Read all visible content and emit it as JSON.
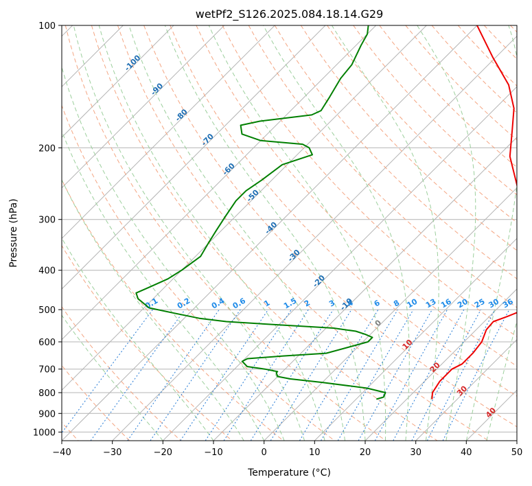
{
  "chart_data": {
    "type": "line",
    "title": "wetPf2_S126.2025.084.18.14.G29",
    "xlabel": "Temperature (°C)",
    "ylabel": "Pressure (hPa)",
    "xlim": [
      -40,
      50
    ],
    "ylim": [
      1050,
      100
    ],
    "y_scale": "log",
    "x_ticks": [
      -40,
      -30,
      -20,
      -10,
      0,
      10,
      20,
      30,
      40,
      50
    ],
    "x_tick_labels": [
      "−40",
      "−30",
      "−20",
      "−10",
      "0",
      "10",
      "20",
      "30",
      "40",
      "50"
    ],
    "y_ticks": [
      100,
      200,
      300,
      400,
      500,
      600,
      700,
      800,
      900,
      1000
    ],
    "y_tick_labels": [
      "100",
      "200",
      "300",
      "400",
      "500",
      "600",
      "700",
      "800",
      "900",
      "1000"
    ],
    "grid": true,
    "skew": true,
    "series": [
      {
        "name": "",
        "color": "#ee0000",
        "points": [
          [
            830,
            25.0
          ],
          [
            800,
            23.8
          ],
          [
            750,
            23.0
          ],
          [
            700,
            23.0
          ],
          [
            680,
            24.0
          ],
          [
            640,
            24.0
          ],
          [
            600,
            23.5
          ],
          [
            560,
            22.0
          ],
          [
            535,
            21.8
          ],
          [
            520,
            23.5
          ],
          [
            505,
            25.0
          ],
          [
            490,
            25.5
          ],
          [
            470,
            24.5
          ],
          [
            450,
            22.5
          ],
          [
            400,
            18.5
          ],
          [
            350,
            13.5
          ],
          [
            300,
            7.2
          ],
          [
            250,
            0.0
          ],
          [
            210,
            -7.6
          ],
          [
            180,
            -12.5
          ],
          [
            160,
            -16.3
          ],
          [
            140,
            -22.0
          ],
          [
            120,
            -30.5
          ],
          [
            100,
            -40.0
          ]
        ]
      },
      {
        "name": "",
        "color": "#007f00",
        "points": [
          [
            830,
            14.0
          ],
          [
            820,
            15.0
          ],
          [
            800,
            14.5
          ],
          [
            780,
            10.0
          ],
          [
            755,
            0.0
          ],
          [
            740,
            -7.0
          ],
          [
            730,
            -10.0
          ],
          [
            715,
            -11.0
          ],
          [
            710,
            -11.0
          ],
          [
            700,
            -14.0
          ],
          [
            690,
            -18.0
          ],
          [
            670,
            -20.0
          ],
          [
            660,
            -19.5
          ],
          [
            650,
            -13.0
          ],
          [
            640,
            -5.0
          ],
          [
            620,
            -2.0
          ],
          [
            600,
            1.0
          ],
          [
            585,
            1.0
          ],
          [
            575,
            -1.0
          ],
          [
            565,
            -3.5
          ],
          [
            555,
            -8.5
          ],
          [
            545,
            -20.0
          ],
          [
            535,
            -31.0
          ],
          [
            525,
            -37.0
          ],
          [
            510,
            -43.0
          ],
          [
            495,
            -49.0
          ],
          [
            470,
            -53.0
          ],
          [
            455,
            -54.5
          ],
          [
            440,
            -53.0
          ],
          [
            420,
            -51.0
          ],
          [
            400,
            -50.0
          ],
          [
            370,
            -49.0
          ],
          [
            345,
            -50.0
          ],
          [
            320,
            -51.0
          ],
          [
            295,
            -52.0
          ],
          [
            270,
            -53.0
          ],
          [
            255,
            -53.0
          ],
          [
            240,
            -52.0
          ],
          [
            220,
            -51.0
          ],
          [
            208,
            -47.0
          ],
          [
            200,
            -49.0
          ],
          [
            196,
            -51.0
          ],
          [
            192,
            -60.0
          ],
          [
            185,
            -65.0
          ],
          [
            176,
            -67.0
          ],
          [
            172,
            -64.0
          ],
          [
            166,
            -55.0
          ],
          [
            162,
            -54.0
          ],
          [
            150,
            -55.0
          ],
          [
            135,
            -56.5
          ],
          [
            125,
            -57.0
          ],
          [
            112,
            -59.0
          ],
          [
            105,
            -60.0
          ],
          [
            100,
            -61.5
          ]
        ]
      }
    ],
    "dry_adiabat_labels": [
      "-100",
      "-90",
      "-80",
      "-70",
      "-60",
      "-50",
      "-40",
      "-30",
      "-20",
      "-10",
      "0",
      "10",
      "20",
      "30",
      "40"
    ],
    "mixing_ratio_labels": [
      "0.1",
      "0.2",
      "0.4",
      "0.6",
      "1",
      "1.5",
      "2",
      "3",
      "4",
      "6",
      "8",
      "10",
      "13",
      "16",
      "20",
      "25",
      "30",
      "36"
    ]
  }
}
